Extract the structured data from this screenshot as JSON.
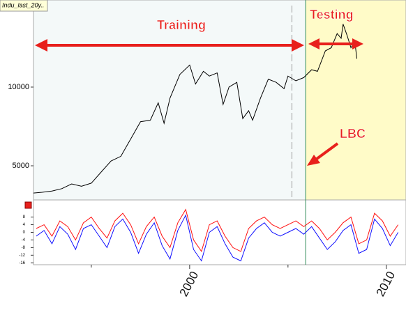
{
  "chart_data": [
    {
      "type": "line",
      "title": "Indu_last_20y..",
      "x": [
        1992.06,
        1992.5,
        1993.0,
        1993.5,
        1994.0,
        1994.5,
        1995.0,
        1995.5,
        1996.0,
        1996.5,
        1997.0,
        1997.5,
        1998.0,
        1998.4,
        1998.7,
        1999.0,
        1999.5,
        2000.0,
        2000.3,
        2000.7,
        2001.0,
        2001.4,
        2001.7,
        2002.0,
        2002.4,
        2002.7,
        2003.0,
        2003.2,
        2003.6,
        2004.0,
        2004.4,
        2004.8,
        2005.0,
        2005.4,
        2005.8,
        2006.2,
        2006.5,
        2006.9,
        2007.2,
        2007.5,
        2007.7,
        2007.8,
        2008.0,
        2008.2,
        2008.4,
        2008.5
      ],
      "series": [
        {
          "color": "#000000",
          "values": [
            3270,
            3320,
            3400,
            3550,
            3850,
            3700,
            3900,
            4600,
            5300,
            5600,
            6700,
            7800,
            7900,
            9000,
            7700,
            9300,
            10800,
            11400,
            10200,
            11000,
            10700,
            10900,
            8900,
            10000,
            10300,
            8000,
            8500,
            7900,
            9300,
            10500,
            10300,
            9900,
            10700,
            10400,
            10600,
            11100,
            11000,
            12300,
            12500,
            13400,
            13100,
            14000,
            13300,
            12500,
            12900,
            11800
          ]
        }
      ],
      "xlim": [
        1992.06,
        2011.0
      ],
      "ylim": [
        2832,
        15531
      ],
      "yticks": [
        5000,
        10000
      ],
      "regions": [
        {
          "xlim": [
            1992.06,
            2005.9
          ],
          "color": "#f4f9f9"
        },
        {
          "xlim": [
            2005.9,
            2011.0
          ],
          "color": "#fffbc8"
        }
      ],
      "vlines": [
        {
          "x": 2005.2,
          "color": "#999999",
          "dashed": true
        },
        {
          "x": 2005.9,
          "color": "#2e8b57",
          "dashed": false
        }
      ],
      "annotations": [
        "Training",
        "Testing",
        "LBC"
      ]
    },
    {
      "type": "line",
      "x": [
        1992.2,
        1992.6,
        1993.0,
        1993.4,
        1993.8,
        1994.2,
        1994.6,
        1995.0,
        1995.4,
        1995.8,
        1996.2,
        1996.6,
        1997.0,
        1997.4,
        1997.8,
        1998.2,
        1998.6,
        1999.0,
        1999.4,
        1999.8,
        2000.2,
        2000.6,
        2001.0,
        2001.4,
        2001.8,
        2002.2,
        2002.6,
        2003.0,
        2003.4,
        2003.8,
        2004.2,
        2004.6,
        2005.0,
        2005.4,
        2005.8,
        2006.2,
        2006.6,
        2007.0,
        2007.4,
        2007.8,
        2008.2,
        2008.6,
        2009.0,
        2009.4,
        2009.8,
        2010.2,
        2010.6
      ],
      "series": [
        {
          "color": "#ff1010",
          "values": [
            2,
            4,
            -2,
            6,
            3,
            -4,
            5,
            8,
            2,
            -3,
            6,
            10,
            4,
            -6,
            3,
            8,
            -2,
            -8,
            5,
            12,
            -4,
            -10,
            4,
            6,
            -2,
            -8,
            -10,
            2,
            6,
            8,
            4,
            2,
            4,
            6,
            3,
            6,
            2,
            -4,
            0,
            5,
            8,
            -6,
            -4,
            10,
            6,
            -2,
            4
          ]
        },
        {
          "color": "#1010ff",
          "values": [
            -2,
            1,
            -6,
            3,
            -1,
            -9,
            2,
            4,
            -2,
            -8,
            3,
            7,
            0,
            -11,
            -1,
            5,
            -7,
            -14,
            1,
            9,
            -9,
            -15,
            0,
            3,
            -6,
            -13,
            -15,
            -3,
            2,
            5,
            0,
            -2,
            0,
            2,
            -1,
            3,
            -3,
            -9,
            -5,
            1,
            4,
            -11,
            -9,
            7,
            2,
            -7,
            0
          ]
        }
      ],
      "xlim": [
        1992.06,
        2011.0
      ],
      "ylim": [
        -17,
        17
      ],
      "yticks": [
        8,
        4,
        0,
        -4,
        -8,
        -12,
        -16
      ],
      "xticks": [
        2000,
        2010
      ],
      "minor_xticks": [
        1995,
        2005
      ],
      "vlines": [
        {
          "x": 2005.9,
          "color": "#2e8b57",
          "dashed": false
        }
      ]
    }
  ]
}
